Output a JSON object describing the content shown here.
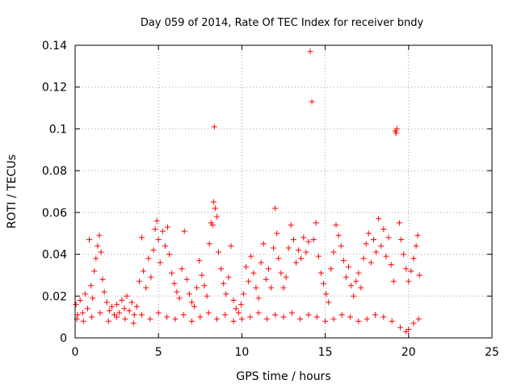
{
  "chart_data": {
    "type": "scatter",
    "title": "Day 059 of 2014, Rate Of TEC Index for receiver bndy",
    "xlabel": "GPS time / hours",
    "ylabel": "ROTI / TECUs",
    "xlim": [
      0,
      25
    ],
    "ylim": [
      0,
      0.14
    ],
    "x_ticks": [
      0,
      5,
      10,
      15,
      20,
      25
    ],
    "y_ticks": [
      0,
      0.02,
      0.04,
      0.06,
      0.08,
      0.1,
      0.12,
      0.14
    ],
    "x_tick_labels": [
      "0",
      "5",
      "10",
      "15",
      "20",
      "25"
    ],
    "y_tick_labels": [
      "0",
      "0.02",
      "0.04",
      "0.06",
      "0.08",
      "0.1",
      "0.12",
      "0.14"
    ],
    "grid": true,
    "marker": "+",
    "color": "#ff0000",
    "series": [
      {
        "name": "ROTI",
        "points": [
          [
            0.05,
            0.016
          ],
          [
            0.15,
            0.011
          ],
          [
            0.3,
            0.018
          ],
          [
            0.45,
            0.012
          ],
          [
            0.6,
            0.021
          ],
          [
            0.75,
            0.014
          ],
          [
            0.85,
            0.047
          ],
          [
            0.95,
            0.025
          ],
          [
            1.05,
            0.019
          ],
          [
            1.15,
            0.032
          ],
          [
            1.25,
            0.038
          ],
          [
            1.35,
            0.044
          ],
          [
            1.45,
            0.049
          ],
          [
            1.55,
            0.041
          ],
          [
            1.65,
            0.028
          ],
          [
            1.75,
            0.022
          ],
          [
            1.9,
            0.017
          ],
          [
            2.05,
            0.013
          ],
          [
            2.2,
            0.015
          ],
          [
            2.35,
            0.011
          ],
          [
            2.5,
            0.016
          ],
          [
            2.65,
            0.012
          ],
          [
            2.8,
            0.018
          ],
          [
            2.95,
            0.014
          ],
          [
            3.1,
            0.02
          ],
          [
            3.25,
            0.013
          ],
          [
            3.4,
            0.017
          ],
          [
            3.55,
            0.011
          ],
          [
            3.7,
            0.015
          ],
          [
            3.85,
            0.027
          ],
          [
            4.0,
            0.048
          ],
          [
            4.1,
            0.032
          ],
          [
            4.25,
            0.024
          ],
          [
            4.4,
            0.038
          ],
          [
            4.55,
            0.029
          ],
          [
            4.7,
            0.042
          ],
          [
            4.8,
            0.052
          ],
          [
            4.9,
            0.056
          ],
          [
            5.0,
            0.047
          ],
          [
            5.1,
            0.036
          ],
          [
            5.25,
            0.051
          ],
          [
            5.4,
            0.044
          ],
          [
            5.55,
            0.053
          ],
          [
            5.65,
            0.04
          ],
          [
            5.8,
            0.031
          ],
          [
            5.95,
            0.026
          ],
          [
            6.1,
            0.022
          ],
          [
            6.25,
            0.019
          ],
          [
            6.4,
            0.033
          ],
          [
            6.55,
            0.051
          ],
          [
            6.7,
            0.028
          ],
          [
            6.85,
            0.021
          ],
          [
            7.0,
            0.017
          ],
          [
            7.15,
            0.015
          ],
          [
            7.3,
            0.024
          ],
          [
            7.45,
            0.037
          ],
          [
            7.6,
            0.03
          ],
          [
            7.75,
            0.025
          ],
          [
            7.9,
            0.02
          ],
          [
            8.05,
            0.045
          ],
          [
            8.15,
            0.055
          ],
          [
            8.25,
            0.054
          ],
          [
            8.3,
            0.065
          ],
          [
            8.35,
            0.101
          ],
          [
            8.4,
            0.062
          ],
          [
            8.5,
            0.058
          ],
          [
            8.6,
            0.041
          ],
          [
            8.75,
            0.033
          ],
          [
            8.9,
            0.026
          ],
          [
            9.05,
            0.021
          ],
          [
            9.2,
            0.029
          ],
          [
            9.35,
            0.044
          ],
          [
            9.5,
            0.018
          ],
          [
            9.65,
            0.014
          ],
          [
            9.8,
            0.012
          ],
          [
            9.95,
            0.016
          ],
          [
            10.1,
            0.021
          ],
          [
            10.25,
            0.034
          ],
          [
            10.4,
            0.027
          ],
          [
            10.55,
            0.039
          ],
          [
            10.7,
            0.031
          ],
          [
            10.85,
            0.024
          ],
          [
            11.0,
            0.019
          ],
          [
            11.15,
            0.036
          ],
          [
            11.3,
            0.045
          ],
          [
            11.45,
            0.028
          ],
          [
            11.6,
            0.033
          ],
          [
            11.75,
            0.024
          ],
          [
            11.9,
            0.043
          ],
          [
            12.0,
            0.062
          ],
          [
            12.1,
            0.05
          ],
          [
            12.2,
            0.038
          ],
          [
            12.35,
            0.031
          ],
          [
            12.5,
            0.024
          ],
          [
            12.65,
            0.029
          ],
          [
            12.8,
            0.043
          ],
          [
            12.95,
            0.054
          ],
          [
            13.1,
            0.047
          ],
          [
            13.25,
            0.036
          ],
          [
            13.4,
            0.042
          ],
          [
            13.55,
            0.038
          ],
          [
            13.7,
            0.048
          ],
          [
            13.85,
            0.041
          ],
          [
            14.0,
            0.046
          ],
          [
            14.1,
            0.137
          ],
          [
            14.2,
            0.113
          ],
          [
            14.3,
            0.047
          ],
          [
            14.45,
            0.055
          ],
          [
            14.6,
            0.039
          ],
          [
            14.75,
            0.031
          ],
          [
            14.9,
            0.026
          ],
          [
            15.05,
            0.021
          ],
          [
            15.2,
            0.017
          ],
          [
            15.35,
            0.033
          ],
          [
            15.5,
            0.041
          ],
          [
            15.65,
            0.054
          ],
          [
            15.8,
            0.049
          ],
          [
            15.95,
            0.044
          ],
          [
            16.1,
            0.037
          ],
          [
            16.25,
            0.029
          ],
          [
            16.4,
            0.034
          ],
          [
            16.55,
            0.025
          ],
          [
            16.7,
            0.02
          ],
          [
            16.85,
            0.027
          ],
          [
            17.0,
            0.031
          ],
          [
            17.15,
            0.024
          ],
          [
            17.3,
            0.038
          ],
          [
            17.45,
            0.045
          ],
          [
            17.6,
            0.05
          ],
          [
            17.75,
            0.036
          ],
          [
            17.9,
            0.047
          ],
          [
            18.05,
            0.041
          ],
          [
            18.2,
            0.057
          ],
          [
            18.35,
            0.044
          ],
          [
            18.5,
            0.052
          ],
          [
            18.65,
            0.039
          ],
          [
            18.8,
            0.048
          ],
          [
            18.95,
            0.035
          ],
          [
            19.1,
            0.027
          ],
          [
            19.2,
            0.099
          ],
          [
            19.25,
            0.098
          ],
          [
            19.3,
            0.1
          ],
          [
            19.45,
            0.055
          ],
          [
            19.55,
            0.047
          ],
          [
            19.7,
            0.04
          ],
          [
            19.85,
            0.033
          ],
          [
            20.0,
            0.027
          ],
          [
            20.15,
            0.032
          ],
          [
            20.3,
            0.038
          ],
          [
            20.45,
            0.044
          ],
          [
            20.55,
            0.049
          ],
          [
            20.65,
            0.03
          ],
          [
            0.1,
            0.009
          ],
          [
            0.5,
            0.008
          ],
          [
            1.0,
            0.01
          ],
          [
            1.5,
            0.012
          ],
          [
            2.0,
            0.008
          ],
          [
            2.5,
            0.01
          ],
          [
            3.0,
            0.009
          ],
          [
            3.5,
            0.007
          ],
          [
            4.0,
            0.011
          ],
          [
            4.5,
            0.009
          ],
          [
            5.0,
            0.012
          ],
          [
            5.5,
            0.01
          ],
          [
            6.0,
            0.009
          ],
          [
            6.5,
            0.011
          ],
          [
            7.0,
            0.008
          ],
          [
            7.5,
            0.01
          ],
          [
            8.0,
            0.012
          ],
          [
            8.5,
            0.009
          ],
          [
            9.0,
            0.011
          ],
          [
            9.5,
            0.008
          ],
          [
            10.0,
            0.009
          ],
          [
            10.5,
            0.01
          ],
          [
            11.0,
            0.012
          ],
          [
            11.5,
            0.009
          ],
          [
            12.0,
            0.011
          ],
          [
            12.5,
            0.01
          ],
          [
            13.0,
            0.012
          ],
          [
            13.5,
            0.009
          ],
          [
            14.0,
            0.011
          ],
          [
            14.5,
            0.01
          ],
          [
            15.0,
            0.008
          ],
          [
            15.5,
            0.009
          ],
          [
            16.0,
            0.011
          ],
          [
            16.5,
            0.01
          ],
          [
            17.0,
            0.008
          ],
          [
            17.5,
            0.009
          ],
          [
            18.0,
            0.011
          ],
          [
            18.5,
            0.01
          ],
          [
            19.0,
            0.008
          ],
          [
            19.5,
            0.005
          ],
          [
            19.85,
            0.003
          ],
          [
            20.0,
            0.004
          ],
          [
            20.3,
            0.007
          ],
          [
            20.6,
            0.009
          ]
        ]
      }
    ]
  }
}
